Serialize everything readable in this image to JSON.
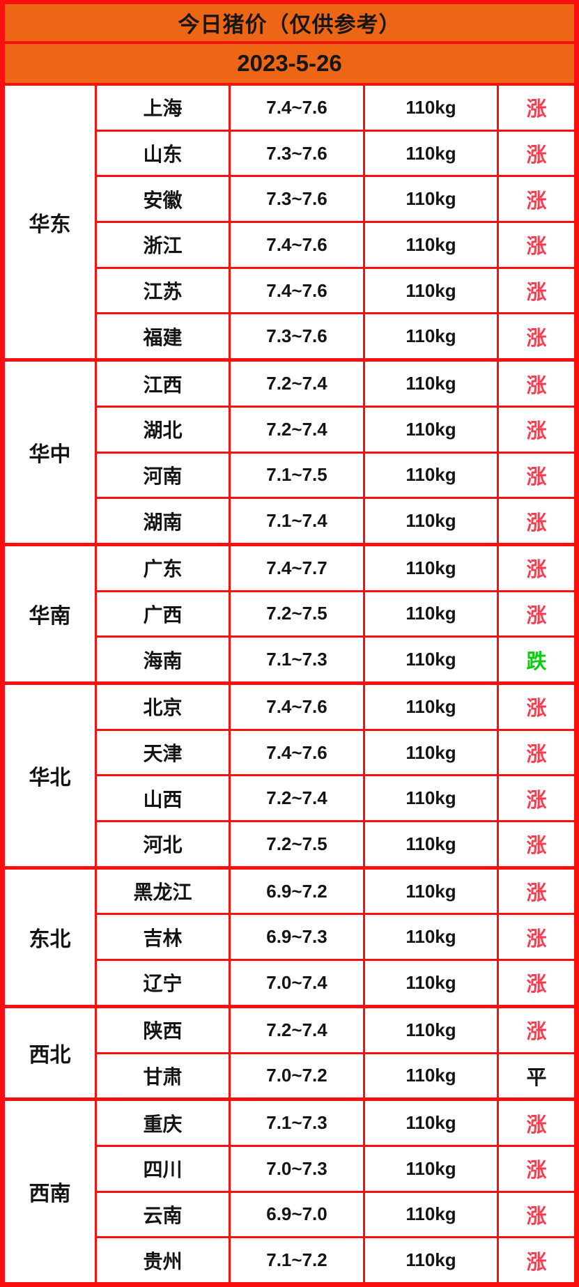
{
  "header": {
    "title": "今日猪价（仅供参考）",
    "date": "2023-5-26"
  },
  "colors": {
    "background_orange": "#EC6615",
    "grid_red": "#F90F0F",
    "trend_up_red": "#FA3C4E",
    "trend_down_green": "#0ACC0A",
    "trend_flat_black": "#141414",
    "text_black": "#141414",
    "cell_white": "#FFFFFF"
  },
  "table": {
    "weight_label": "110kg",
    "trend_labels": {
      "up": "涨",
      "down": "跌",
      "flat": "平"
    },
    "groups": [
      {
        "region": "华东",
        "rows": [
          {
            "province": "上海",
            "price": "7.4~7.6",
            "weight": "110kg",
            "trend": "up",
            "trend_label": "涨"
          },
          {
            "province": "山东",
            "price": "7.3~7.6",
            "weight": "110kg",
            "trend": "up",
            "trend_label": "涨"
          },
          {
            "province": "安徽",
            "price": "7.3~7.6",
            "weight": "110kg",
            "trend": "up",
            "trend_label": "涨"
          },
          {
            "province": "浙江",
            "price": "7.4~7.6",
            "weight": "110kg",
            "trend": "up",
            "trend_label": "涨"
          },
          {
            "province": "江苏",
            "price": "7.4~7.6",
            "weight": "110kg",
            "trend": "up",
            "trend_label": "涨"
          },
          {
            "province": "福建",
            "price": "7.3~7.6",
            "weight": "110kg",
            "trend": "up",
            "trend_label": "涨"
          }
        ]
      },
      {
        "region": "华中",
        "rows": [
          {
            "province": "江西",
            "price": "7.2~7.4",
            "weight": "110kg",
            "trend": "up",
            "trend_label": "涨"
          },
          {
            "province": "湖北",
            "price": "7.2~7.4",
            "weight": "110kg",
            "trend": "up",
            "trend_label": "涨"
          },
          {
            "province": "河南",
            "price": "7.1~7.5",
            "weight": "110kg",
            "trend": "up",
            "trend_label": "涨"
          },
          {
            "province": "湖南",
            "price": "7.1~7.4",
            "weight": "110kg",
            "trend": "up",
            "trend_label": "涨"
          }
        ]
      },
      {
        "region": "华南",
        "rows": [
          {
            "province": "广东",
            "price": "7.4~7.7",
            "weight": "110kg",
            "trend": "up",
            "trend_label": "涨"
          },
          {
            "province": "广西",
            "price": "7.2~7.5",
            "weight": "110kg",
            "trend": "up",
            "trend_label": "涨"
          },
          {
            "province": "海南",
            "price": "7.1~7.3",
            "weight": "110kg",
            "trend": "down",
            "trend_label": "跌"
          }
        ]
      },
      {
        "region": "华北",
        "rows": [
          {
            "province": "北京",
            "price": "7.4~7.6",
            "weight": "110kg",
            "trend": "up",
            "trend_label": "涨"
          },
          {
            "province": "天津",
            "price": "7.4~7.6",
            "weight": "110kg",
            "trend": "up",
            "trend_label": "涨"
          },
          {
            "province": "山西",
            "price": "7.2~7.4",
            "weight": "110kg",
            "trend": "up",
            "trend_label": "涨"
          },
          {
            "province": "河北",
            "price": "7.2~7.5",
            "weight": "110kg",
            "trend": "up",
            "trend_label": "涨"
          }
        ]
      },
      {
        "region": "东北",
        "rows": [
          {
            "province": "黑龙江",
            "price": "6.9~7.2",
            "weight": "110kg",
            "trend": "up",
            "trend_label": "涨"
          },
          {
            "province": "吉林",
            "price": "6.9~7.3",
            "weight": "110kg",
            "trend": "up",
            "trend_label": "涨"
          },
          {
            "province": "辽宁",
            "price": "7.0~7.4",
            "weight": "110kg",
            "trend": "up",
            "trend_label": "涨"
          }
        ]
      },
      {
        "region": "西北",
        "rows": [
          {
            "province": "陕西",
            "price": "7.2~7.4",
            "weight": "110kg",
            "trend": "up",
            "trend_label": "涨"
          },
          {
            "province": "甘肃",
            "price": "7.0~7.2",
            "weight": "110kg",
            "trend": "flat",
            "trend_label": "平"
          }
        ]
      },
      {
        "region": "西南",
        "rows": [
          {
            "province": "重庆",
            "price": "7.1~7.3",
            "weight": "110kg",
            "trend": "up",
            "trend_label": "涨"
          },
          {
            "province": "四川",
            "price": "7.0~7.3",
            "weight": "110kg",
            "trend": "up",
            "trend_label": "涨"
          },
          {
            "province": "云南",
            "price": "6.9~7.0",
            "weight": "110kg",
            "trend": "up",
            "trend_label": "涨"
          },
          {
            "province": "贵州",
            "price": "7.1~7.2",
            "weight": "110kg",
            "trend": "up",
            "trend_label": "涨"
          }
        ]
      }
    ]
  },
  "chart_data": {
    "type": "table",
    "title": "今日猪价（仅供参考）",
    "subtitle": "2023-5-26",
    "columns": [
      "region",
      "province",
      "price_range_low",
      "price_range_high",
      "weight",
      "trend"
    ],
    "rows": [
      [
        "华东",
        "上海",
        7.4,
        7.6,
        "110kg",
        "涨"
      ],
      [
        "华东",
        "山东",
        7.3,
        7.6,
        "110kg",
        "涨"
      ],
      [
        "华东",
        "安徽",
        7.3,
        7.6,
        "110kg",
        "涨"
      ],
      [
        "华东",
        "浙江",
        7.4,
        7.6,
        "110kg",
        "涨"
      ],
      [
        "华东",
        "江苏",
        7.4,
        7.6,
        "110kg",
        "涨"
      ],
      [
        "华东",
        "福建",
        7.3,
        7.6,
        "110kg",
        "涨"
      ],
      [
        "华中",
        "江西",
        7.2,
        7.4,
        "110kg",
        "涨"
      ],
      [
        "华中",
        "湖北",
        7.2,
        7.4,
        "110kg",
        "涨"
      ],
      [
        "华中",
        "河南",
        7.1,
        7.5,
        "110kg",
        "涨"
      ],
      [
        "华中",
        "湖南",
        7.1,
        7.4,
        "110kg",
        "涨"
      ],
      [
        "华南",
        "广东",
        7.4,
        7.7,
        "110kg",
        "涨"
      ],
      [
        "华南",
        "广西",
        7.2,
        7.5,
        "110kg",
        "涨"
      ],
      [
        "华南",
        "海南",
        7.1,
        7.3,
        "110kg",
        "跌"
      ],
      [
        "华北",
        "北京",
        7.4,
        7.6,
        "110kg",
        "涨"
      ],
      [
        "华北",
        "天津",
        7.4,
        7.6,
        "110kg",
        "涨"
      ],
      [
        "华北",
        "山西",
        7.2,
        7.4,
        "110kg",
        "涨"
      ],
      [
        "华北",
        "河北",
        7.2,
        7.5,
        "110kg",
        "涨"
      ],
      [
        "东北",
        "黑龙江",
        6.9,
        7.2,
        "110kg",
        "涨"
      ],
      [
        "东北",
        "吉林",
        6.9,
        7.3,
        "110kg",
        "涨"
      ],
      [
        "东北",
        "辽宁",
        7.0,
        7.4,
        "110kg",
        "涨"
      ],
      [
        "西北",
        "陕西",
        7.2,
        7.4,
        "110kg",
        "涨"
      ],
      [
        "西北",
        "甘肃",
        7.0,
        7.2,
        "110kg",
        "平"
      ],
      [
        "西南",
        "重庆",
        7.1,
        7.3,
        "110kg",
        "涨"
      ],
      [
        "西南",
        "四川",
        7.0,
        7.3,
        "110kg",
        "涨"
      ],
      [
        "西南",
        "云南",
        6.9,
        7.0,
        "110kg",
        "涨"
      ],
      [
        "西南",
        "贵州",
        7.1,
        7.2,
        "110kg",
        "涨"
      ]
    ]
  }
}
